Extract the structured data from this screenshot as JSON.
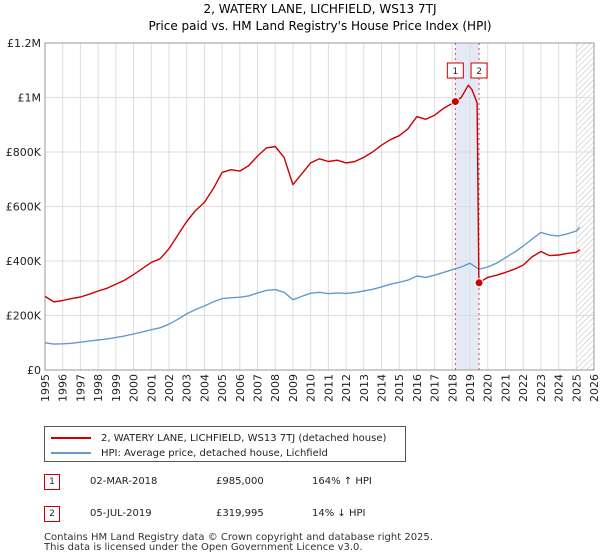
{
  "chart_data": {
    "type": "line",
    "title": "2, WATERY LANE, LICHFIELD, WS13 7TJ",
    "subtitle": "Price paid vs. HM Land Registry's House Price Index (HPI)",
    "xlabel": "",
    "ylabel": "",
    "xlim": [
      1995,
      2026
    ],
    "ylim": [
      0,
      1200000
    ],
    "x_ticks": [
      "1995",
      "1996",
      "1997",
      "1998",
      "1999",
      "2000",
      "2001",
      "2002",
      "2003",
      "2004",
      "2005",
      "2006",
      "2007",
      "2008",
      "2009",
      "2010",
      "2011",
      "2012",
      "2013",
      "2014",
      "2015",
      "2016",
      "2017",
      "2018",
      "2019",
      "2020",
      "2021",
      "2022",
      "2023",
      "2024",
      "2025",
      "2026"
    ],
    "y_ticks": [
      {
        "value": 0,
        "label": "£0"
      },
      {
        "value": 200000,
        "label": "£200K"
      },
      {
        "value": 400000,
        "label": "£400K"
      },
      {
        "value": 600000,
        "label": "£600K"
      },
      {
        "value": 800000,
        "label": "£800K"
      },
      {
        "value": 1000000,
        "label": "£1M"
      },
      {
        "value": 1200000,
        "label": "£1.2M"
      }
    ],
    "grid": true,
    "series": [
      {
        "name": "2, WATERY LANE, LICHFIELD, WS13 7TJ (detached house)",
        "color": "#cc0000",
        "points": [
          [
            1995.0,
            270000
          ],
          [
            1995.5,
            250000
          ],
          [
            1996.0,
            255000
          ],
          [
            1996.5,
            262000
          ],
          [
            1997.0,
            268000
          ],
          [
            1997.5,
            278000
          ],
          [
            1998.0,
            290000
          ],
          [
            1998.5,
            300000
          ],
          [
            1999.0,
            315000
          ],
          [
            1999.5,
            330000
          ],
          [
            2000.0,
            350000
          ],
          [
            2000.5,
            372000
          ],
          [
            2001.0,
            395000
          ],
          [
            2001.5,
            408000
          ],
          [
            2002.0,
            445000
          ],
          [
            2002.5,
            495000
          ],
          [
            2003.0,
            545000
          ],
          [
            2003.5,
            585000
          ],
          [
            2004.0,
            615000
          ],
          [
            2004.5,
            665000
          ],
          [
            2005.0,
            725000
          ],
          [
            2005.5,
            735000
          ],
          [
            2006.0,
            730000
          ],
          [
            2006.5,
            750000
          ],
          [
            2007.0,
            785000
          ],
          [
            2007.5,
            815000
          ],
          [
            2008.0,
            820000
          ],
          [
            2008.5,
            780000
          ],
          [
            2009.0,
            680000
          ],
          [
            2009.5,
            720000
          ],
          [
            2010.0,
            760000
          ],
          [
            2010.5,
            775000
          ],
          [
            2011.0,
            765000
          ],
          [
            2011.5,
            770000
          ],
          [
            2012.0,
            760000
          ],
          [
            2012.5,
            765000
          ],
          [
            2013.0,
            780000
          ],
          [
            2013.5,
            800000
          ],
          [
            2014.0,
            825000
          ],
          [
            2014.5,
            845000
          ],
          [
            2015.0,
            860000
          ],
          [
            2015.5,
            885000
          ],
          [
            2016.0,
            930000
          ],
          [
            2016.5,
            920000
          ],
          [
            2017.0,
            935000
          ],
          [
            2017.5,
            960000
          ],
          [
            2018.17,
            985000
          ],
          [
            2018.5,
            1000000
          ],
          [
            2018.9,
            1045000
          ],
          [
            2019.1,
            1030000
          ],
          [
            2019.4,
            980000
          ],
          [
            2019.5,
            319995
          ],
          [
            2020.0,
            340000
          ],
          [
            2020.5,
            348000
          ],
          [
            2021.0,
            358000
          ],
          [
            2021.5,
            370000
          ],
          [
            2022.0,
            385000
          ],
          [
            2022.5,
            415000
          ],
          [
            2023.0,
            435000
          ],
          [
            2023.5,
            420000
          ],
          [
            2024.0,
            422000
          ],
          [
            2024.5,
            428000
          ],
          [
            2025.0,
            432000
          ],
          [
            2025.2,
            442000
          ]
        ]
      },
      {
        "name": "HPI: Average price, detached house, Lichfield",
        "color": "#6699cc",
        "points": [
          [
            1995.0,
            100000
          ],
          [
            1995.5,
            95000
          ],
          [
            1996.0,
            96000
          ],
          [
            1996.5,
            98000
          ],
          [
            1997.0,
            102000
          ],
          [
            1997.5,
            106000
          ],
          [
            1998.0,
            110000
          ],
          [
            1998.5,
            114000
          ],
          [
            1999.0,
            119000
          ],
          [
            1999.5,
            125000
          ],
          [
            2000.0,
            132000
          ],
          [
            2000.5,
            140000
          ],
          [
            2001.0,
            148000
          ],
          [
            2001.5,
            155000
          ],
          [
            2002.0,
            168000
          ],
          [
            2002.5,
            186000
          ],
          [
            2003.0,
            206000
          ],
          [
            2003.5,
            222000
          ],
          [
            2004.0,
            235000
          ],
          [
            2004.5,
            250000
          ],
          [
            2005.0,
            262000
          ],
          [
            2005.5,
            265000
          ],
          [
            2006.0,
            267000
          ],
          [
            2006.5,
            272000
          ],
          [
            2007.0,
            283000
          ],
          [
            2007.5,
            292000
          ],
          [
            2008.0,
            295000
          ],
          [
            2008.5,
            285000
          ],
          [
            2009.0,
            258000
          ],
          [
            2009.5,
            270000
          ],
          [
            2010.0,
            282000
          ],
          [
            2010.5,
            285000
          ],
          [
            2011.0,
            280000
          ],
          [
            2011.5,
            283000
          ],
          [
            2012.0,
            281000
          ],
          [
            2012.5,
            284000
          ],
          [
            2013.0,
            290000
          ],
          [
            2013.5,
            296000
          ],
          [
            2014.0,
            305000
          ],
          [
            2014.5,
            315000
          ],
          [
            2015.0,
            322000
          ],
          [
            2015.5,
            330000
          ],
          [
            2016.0,
            345000
          ],
          [
            2016.5,
            340000
          ],
          [
            2017.0,
            348000
          ],
          [
            2017.5,
            358000
          ],
          [
            2018.0,
            368000
          ],
          [
            2018.5,
            378000
          ],
          [
            2019.0,
            392000
          ],
          [
            2019.5,
            370000
          ],
          [
            2020.0,
            378000
          ],
          [
            2020.5,
            392000
          ],
          [
            2021.0,
            412000
          ],
          [
            2021.5,
            432000
          ],
          [
            2022.0,
            455000
          ],
          [
            2022.5,
            480000
          ],
          [
            2023.0,
            505000
          ],
          [
            2023.5,
            495000
          ],
          [
            2024.0,
            492000
          ],
          [
            2024.5,
            500000
          ],
          [
            2025.0,
            510000
          ],
          [
            2025.2,
            525000
          ]
        ]
      }
    ],
    "sale_points": [
      {
        "x": 2018.17,
        "y": 985000
      },
      {
        "x": 2019.51,
        "y": 319995
      }
    ],
    "markers": [
      {
        "label": "1",
        "x": 2018.17
      },
      {
        "label": "2",
        "x": 2019.51
      }
    ],
    "shaded_regions": [
      {
        "from": 2018.17,
        "to": 2019.51,
        "color": "#dde4f4"
      }
    ],
    "hatched_from": 2025.0,
    "legend_position": "below chart"
  },
  "legend": {
    "items": [
      {
        "label": "2, WATERY LANE, LICHFIELD, WS13 7TJ (detached house)",
        "color": "#cc0000"
      },
      {
        "label": "HPI: Average price, detached house, Lichfield",
        "color": "#6699cc"
      }
    ]
  },
  "transactions": [
    {
      "num": "1",
      "date": "02-MAR-2018",
      "price": "£985,000",
      "hpi": "164% ↑ HPI"
    },
    {
      "num": "2",
      "date": "05-JUL-2019",
      "price": "£319,995",
      "hpi": "14% ↓ HPI"
    }
  ],
  "footer": {
    "line1": "Contains HM Land Registry data © Crown copyright and database right 2025.",
    "line2": "This data is licensed under the Open Government Licence v3.0."
  }
}
